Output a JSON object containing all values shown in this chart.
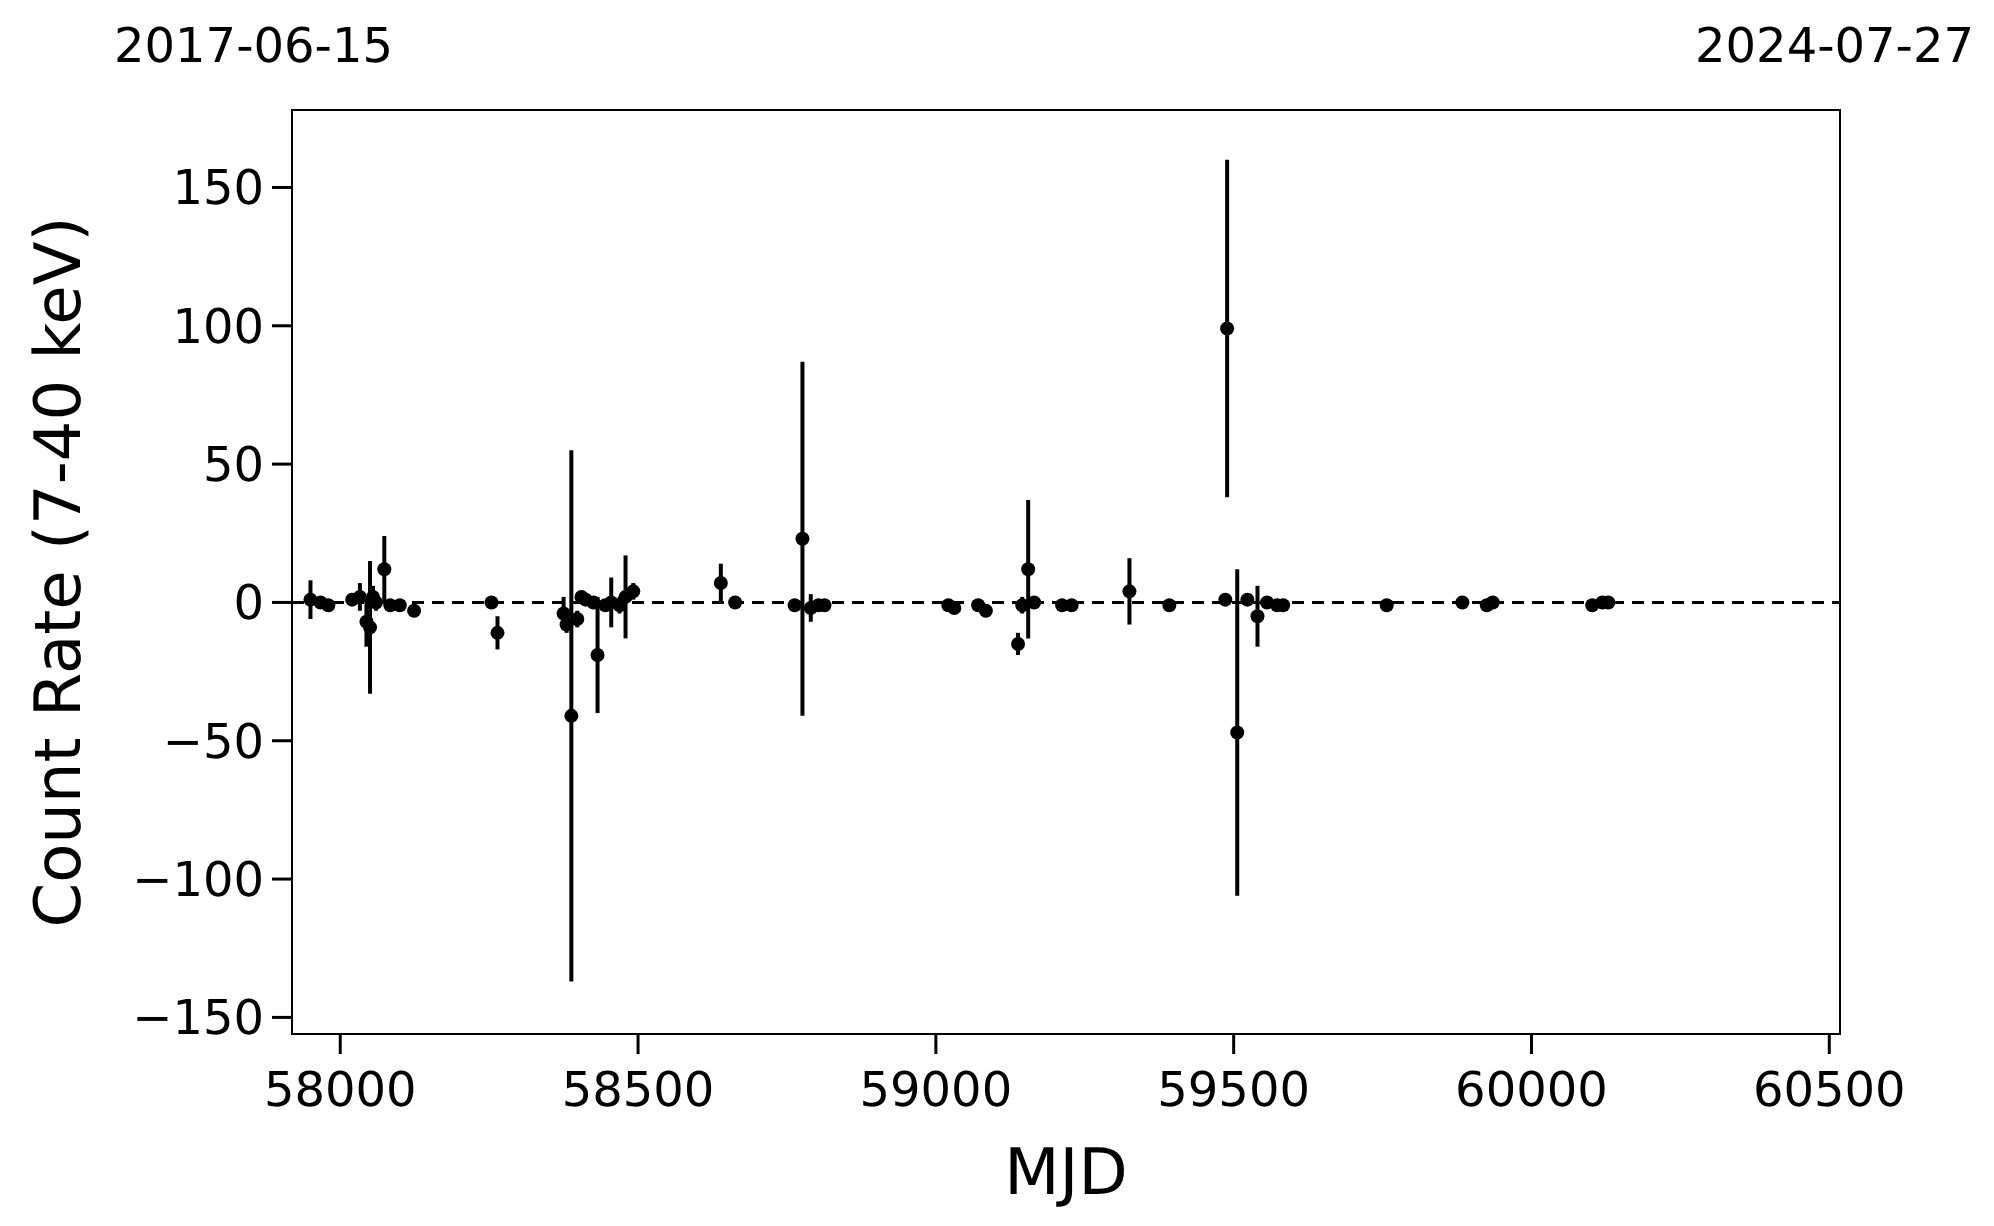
{
  "chart_data": {
    "type": "scatter",
    "xlabel": "MJD",
    "ylabel": "Count Rate (7-40 keV)",
    "annotations": [
      "2017-06-15",
      "2024-07-27"
    ],
    "xlim": [
      57919,
      60518
    ],
    "xticks": [
      58000,
      58500,
      59000,
      59500,
      60000,
      60500
    ],
    "ylim": [
      -156,
      178
    ],
    "yticks": [
      {
        "value": -150,
        "label": "−150"
      },
      {
        "value": -100,
        "label": "−100"
      },
      {
        "value": -50,
        "label": "−50"
      },
      0,
      50,
      100,
      150
    ],
    "marker": "circle",
    "grid": false,
    "ref_lines": [
      {
        "axis": "y",
        "value": 0,
        "color": "#000000",
        "line_style": "dashed"
      }
    ],
    "series": [
      {
        "color": "#000000",
        "x": [
          57950,
          57967,
          57980,
          58020,
          58033,
          58044,
          58050,
          58055,
          58060,
          58074,
          58084,
          58100,
          58124,
          58254,
          58264,
          58375,
          58380,
          58388,
          58398,
          58405,
          58412,
          58425,
          58432,
          58445,
          58455,
          58469,
          58479,
          58492,
          58639,
          58663,
          58763,
          58776,
          58790,
          58803,
          58813,
          59021,
          59031,
          59071,
          59084,
          59138,
          59145,
          59155,
          59165,
          59212,
          59228,
          59325,
          59392,
          59486,
          59489,
          59506,
          59523,
          59540,
          59556,
          59573,
          59583,
          59757,
          59884,
          59925,
          59935,
          60102,
          60119,
          60129
        ],
        "values": [
          1,
          0,
          -1,
          1,
          2,
          -7,
          -9,
          2,
          0,
          12,
          -1,
          -1,
          -3,
          0,
          -11,
          -4,
          -8,
          -41,
          -6,
          2,
          1,
          0,
          -19,
          -1,
          0,
          -1,
          2,
          4,
          7,
          0,
          -1,
          23,
          -2,
          -1,
          -1,
          -1,
          -2,
          -1,
          -3,
          -15,
          -1,
          12,
          0,
          -1,
          -1,
          4,
          -1,
          1,
          99,
          -47,
          1,
          -5,
          0,
          -1,
          -1,
          -1,
          0,
          -1,
          0,
          -1,
          0,
          0
        ],
        "errors": [
          7,
          1,
          1,
          2,
          5,
          9,
          24,
          4,
          3,
          12,
          2,
          1,
          2,
          2,
          6,
          6,
          3,
          96,
          3,
          2,
          2,
          2,
          21,
          2,
          9,
          3,
          15,
          3,
          7,
          1,
          2,
          64,
          5,
          2,
          1,
          1,
          1,
          1,
          1,
          4,
          3,
          25,
          2,
          2,
          1,
          12,
          1,
          2,
          61,
          59,
          2,
          11,
          2,
          2,
          1,
          2,
          2,
          1,
          1,
          1,
          2,
          1
        ]
      }
    ]
  }
}
